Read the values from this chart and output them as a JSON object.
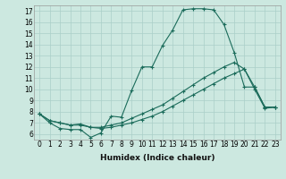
{
  "title": "",
  "xlabel": "Humidex (Indice chaleur)",
  "ylabel": "",
  "background_color": "#cce8e0",
  "grid_color": "#aacfc8",
  "line_color": "#1a6b5a",
  "xlim": [
    -0.5,
    23.5
  ],
  "ylim": [
    5.5,
    17.5
  ],
  "xticks": [
    0,
    1,
    2,
    3,
    4,
    5,
    6,
    7,
    8,
    9,
    10,
    11,
    12,
    13,
    14,
    15,
    16,
    17,
    18,
    19,
    20,
    21,
    22,
    23
  ],
  "yticks": [
    6,
    7,
    8,
    9,
    10,
    11,
    12,
    13,
    14,
    15,
    16,
    17
  ],
  "curve1_x": [
    0,
    1,
    2,
    3,
    4,
    5,
    6,
    7,
    8,
    9,
    10,
    11,
    12,
    13,
    14,
    15,
    16,
    17,
    18,
    19,
    20,
    21,
    22,
    23
  ],
  "curve1_y": [
    7.8,
    7.0,
    6.5,
    6.4,
    6.4,
    5.7,
    6.1,
    7.6,
    7.5,
    9.9,
    12.0,
    12.0,
    13.9,
    15.3,
    17.1,
    17.2,
    17.2,
    17.1,
    15.8,
    13.3,
    10.2,
    10.2,
    8.4,
    8.4
  ],
  "curve2_x": [
    0,
    1,
    2,
    3,
    4,
    5,
    6,
    7,
    8,
    9,
    10,
    11,
    12,
    13,
    14,
    15,
    16,
    17,
    18,
    19,
    20,
    21,
    22,
    23
  ],
  "curve2_y": [
    7.8,
    7.2,
    7.0,
    6.8,
    6.8,
    6.6,
    6.6,
    6.8,
    7.0,
    7.4,
    7.8,
    8.2,
    8.6,
    9.2,
    9.8,
    10.4,
    11.0,
    11.5,
    12.0,
    12.4,
    11.8,
    10.2,
    8.4,
    8.4
  ],
  "curve3_x": [
    0,
    1,
    2,
    3,
    4,
    5,
    6,
    7,
    8,
    9,
    10,
    11,
    12,
    13,
    14,
    15,
    16,
    17,
    18,
    19,
    20,
    21,
    22,
    23
  ],
  "curve3_y": [
    7.8,
    7.2,
    7.0,
    6.8,
    6.9,
    6.6,
    6.5,
    6.6,
    6.8,
    7.0,
    7.3,
    7.6,
    8.0,
    8.5,
    9.0,
    9.5,
    10.0,
    10.5,
    11.0,
    11.4,
    11.8,
    10.0,
    8.3,
    8.4
  ],
  "tick_fontsize": 5.5,
  "xlabel_fontsize": 6.5
}
